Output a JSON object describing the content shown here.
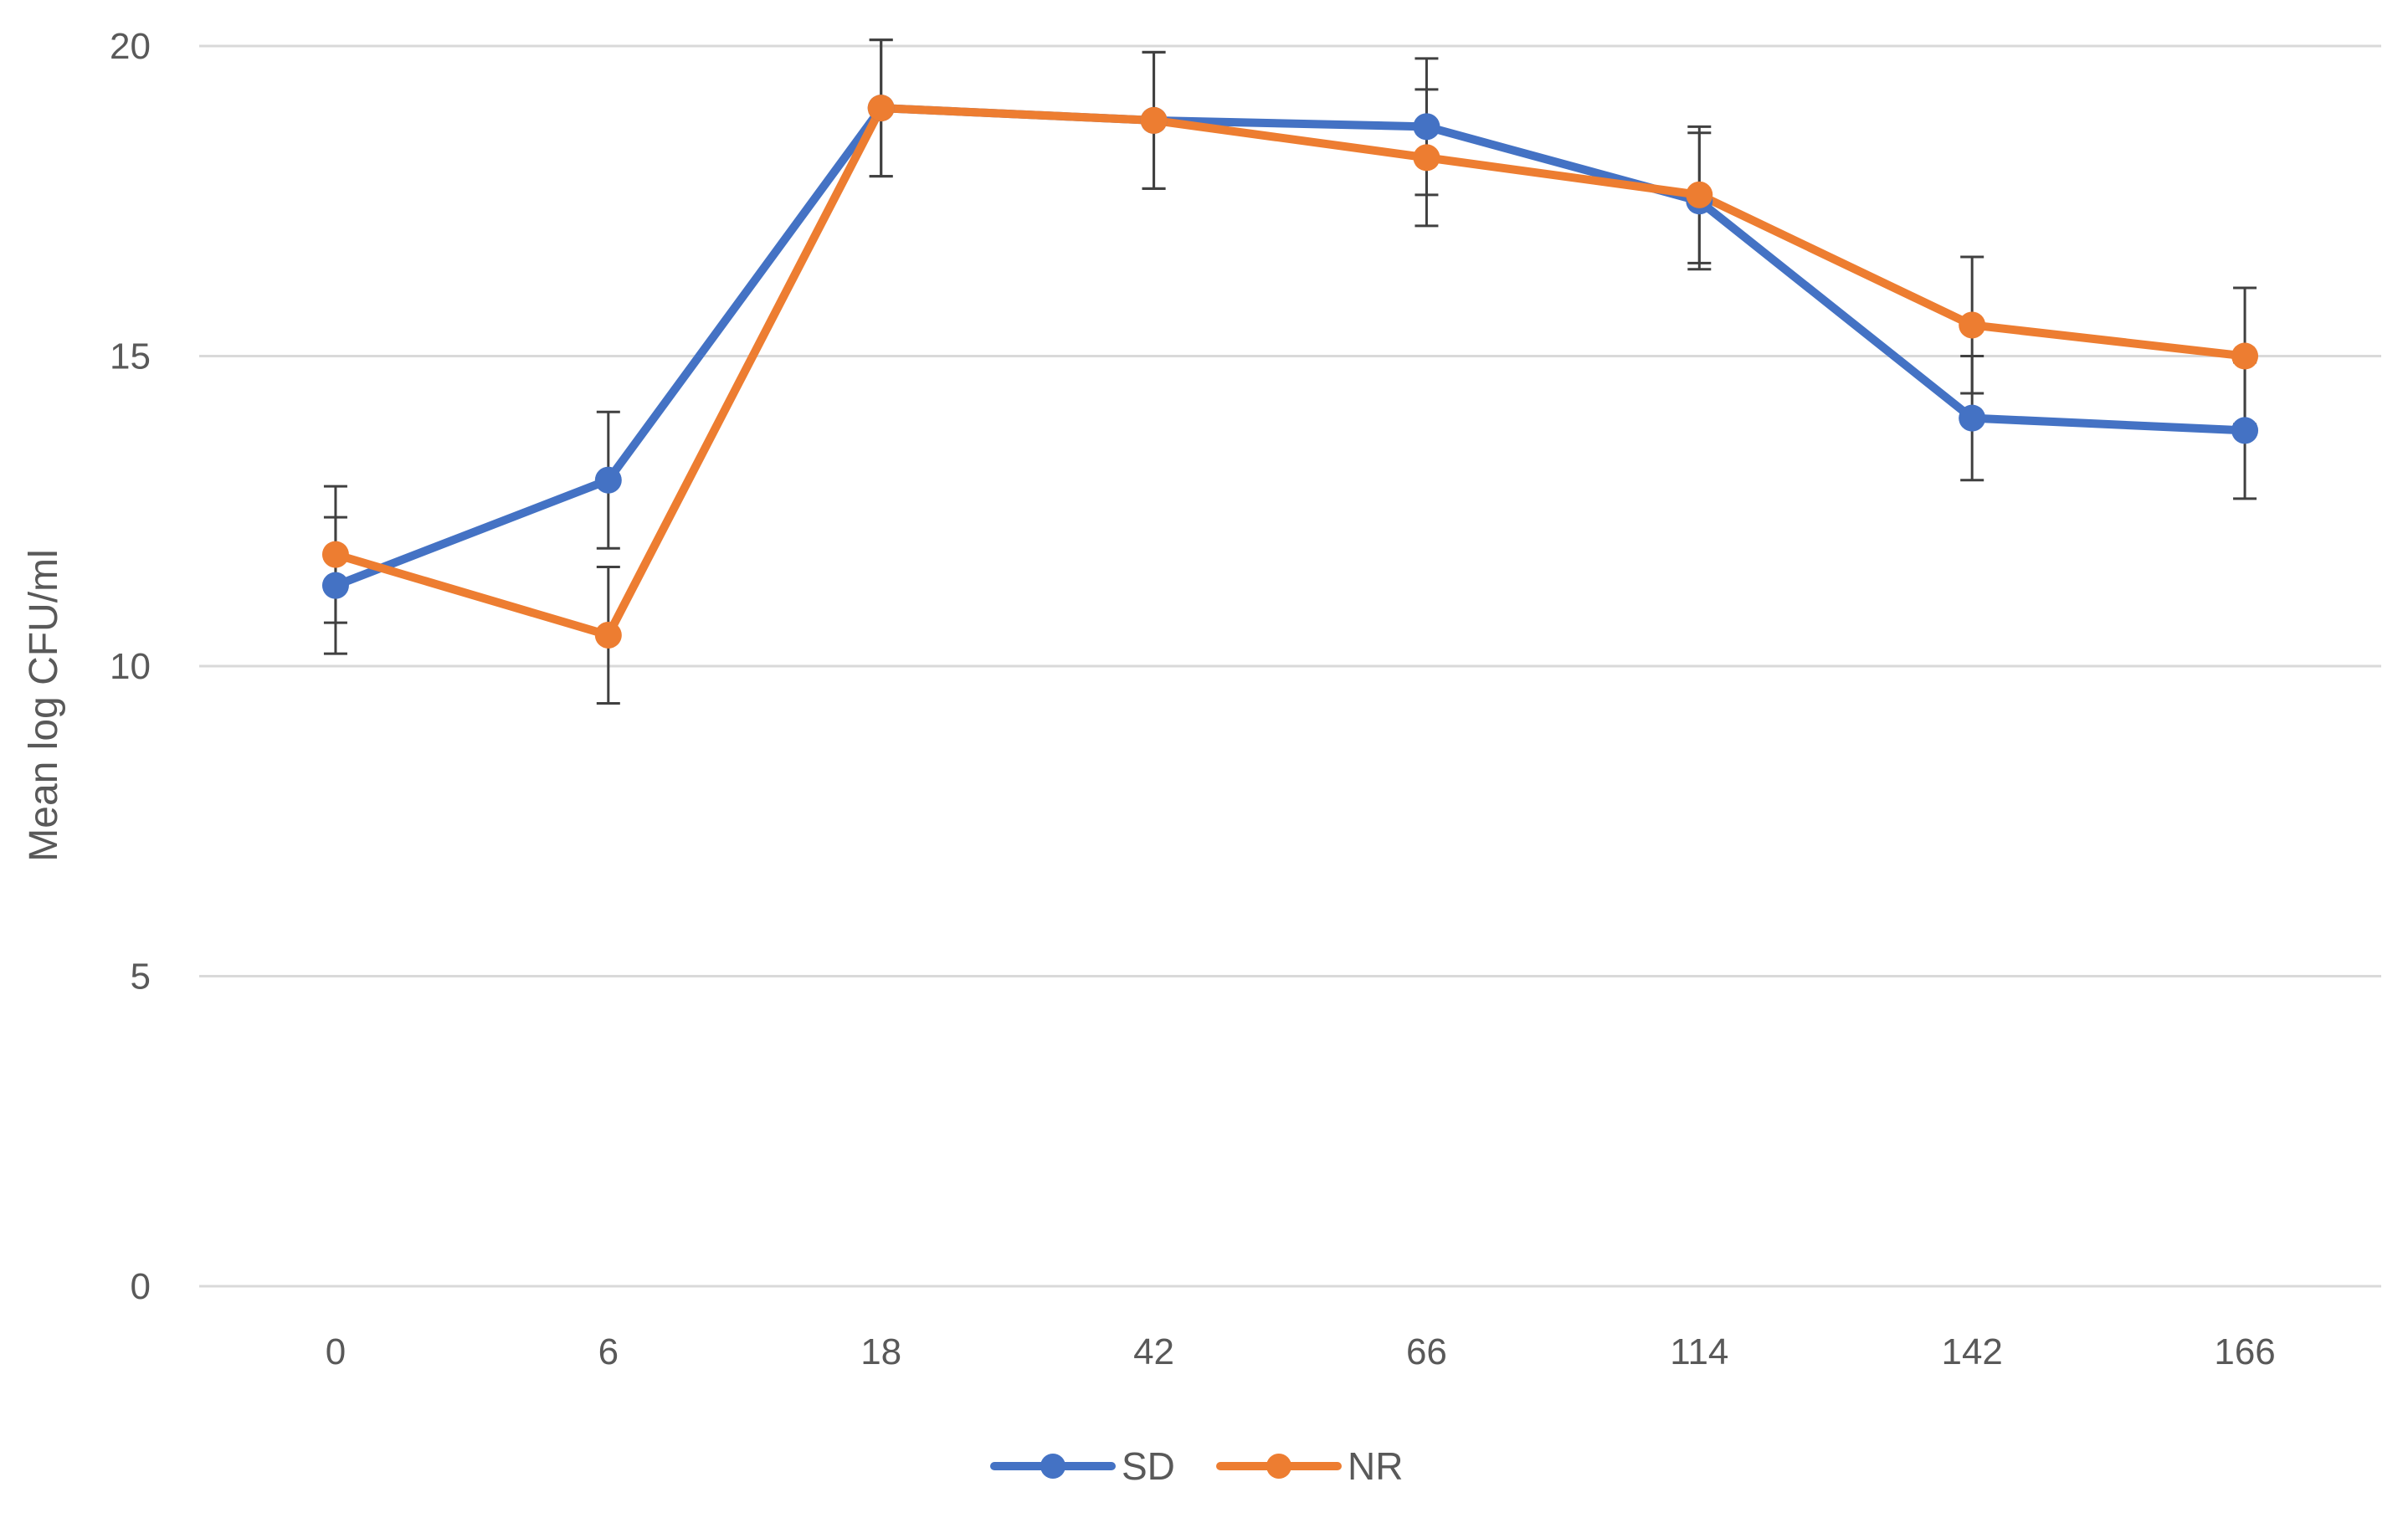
{
  "chart_data": {
    "type": "line",
    "title": "",
    "xlabel": "",
    "ylabel": "Mean log  CFU/ml",
    "categories": [
      "0",
      "6",
      "18",
      "42",
      "66",
      "114",
      "142",
      "166"
    ],
    "ylim": [
      0,
      20
    ],
    "yticks": [
      0,
      5,
      10,
      15,
      20
    ],
    "grid": true,
    "legend_position": "bottom-center",
    "series": [
      {
        "name": "SD",
        "color": "#4472C4",
        "values": [
          11.3,
          13.0,
          19.0,
          18.8,
          18.7,
          17.5,
          14.0,
          13.8
        ],
        "errors": [
          1.1,
          1.1,
          1.1,
          1.1,
          1.1,
          1.1,
          1.0,
          1.1
        ]
      },
      {
        "name": "NR",
        "color": "#ED7D31",
        "values": [
          11.8,
          10.5,
          19.0,
          18.8,
          18.2,
          17.6,
          15.5,
          15.0
        ],
        "errors": [
          1.1,
          1.1,
          1.1,
          1.1,
          1.1,
          1.1,
          1.1,
          1.1
        ]
      }
    ]
  }
}
